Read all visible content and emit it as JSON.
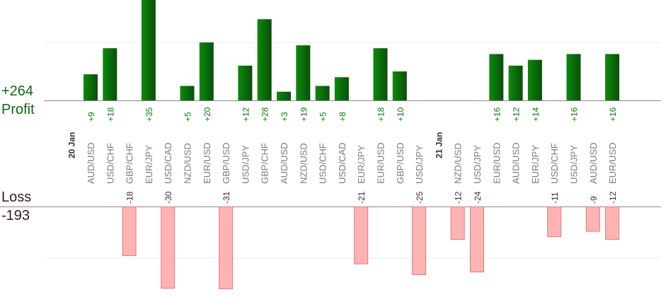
{
  "summary": {
    "profit_total": "+264",
    "profit_label": "Profit",
    "loss_label": "Loss",
    "loss_total": "-193"
  },
  "chart_data": {
    "type": "bar",
    "grid": true,
    "legend": "none",
    "date_groups": [
      {
        "date": "20 Jan",
        "before_index": 0
      },
      {
        "date": "21 Jan",
        "before_index": 18
      }
    ],
    "categories": [
      "AUD/USD",
      "USD/CHF",
      "GBP/CHF",
      "EUR/JPY",
      "USD/CAD",
      "NZD/USD",
      "EUR/USD",
      "GBP/USD",
      "USD/JPY",
      "GBP/CHF",
      "AUD/USD",
      "NZD/USD",
      "USD/CHF",
      "USD/CAD",
      "EUR/JPY",
      "EUR/USD",
      "GBP/USD",
      "USD/JPY",
      "NZD/USD",
      "USD/JPY",
      "EUR/USD",
      "AUD/USD",
      "EUR/JPY",
      "USD/CHF",
      "USD/JPY",
      "AUD/USD",
      "EUR/USD"
    ],
    "series": [
      {
        "values": [
          9,
          18,
          0,
          35,
          0,
          5,
          20,
          0,
          12,
          28,
          3,
          19,
          5,
          8,
          0,
          18,
          10,
          0,
          0,
          0,
          16,
          12,
          14,
          0,
          16,
          0,
          16
        ],
        "labels": [
          "+9",
          "+18",
          "",
          "+35",
          "",
          "+5",
          "+20",
          "",
          "+12",
          "+28",
          "+3",
          "+19",
          "+5",
          "+8",
          "",
          "+18",
          "+10",
          "",
          "",
          "",
          "+16",
          "+12",
          "+14",
          "",
          "+16",
          "",
          "+16"
        ]
      },
      {
        "values": [
          0,
          0,
          -18,
          0,
          -30,
          0,
          0,
          -31,
          0,
          0,
          0,
          0,
          0,
          0,
          -21,
          0,
          0,
          -25,
          -12,
          -24,
          0,
          0,
          0,
          -11,
          0,
          -9,
          -12
        ],
        "labels": [
          "",
          "",
          "-18",
          "",
          "-30",
          "",
          "",
          "-31",
          "",
          "",
          "",
          "",
          "",
          "",
          "-21",
          "",
          "",
          "-25",
          "-12",
          "-24",
          "",
          "",
          "",
          "-11",
          "",
          "-9",
          "-12"
        ]
      }
    ],
    "colors": {
      "profit_top": "#0b8a0b",
      "profit_bottom": "#0a4f0a",
      "loss_fill": "#ffb3b3",
      "loss_stroke": "#e07a7a",
      "grid": "#eeeeee",
      "axis": "#888888",
      "category_text": "#7a7a7a",
      "profit_text": "#117711",
      "loss_text": "#333333"
    }
  }
}
